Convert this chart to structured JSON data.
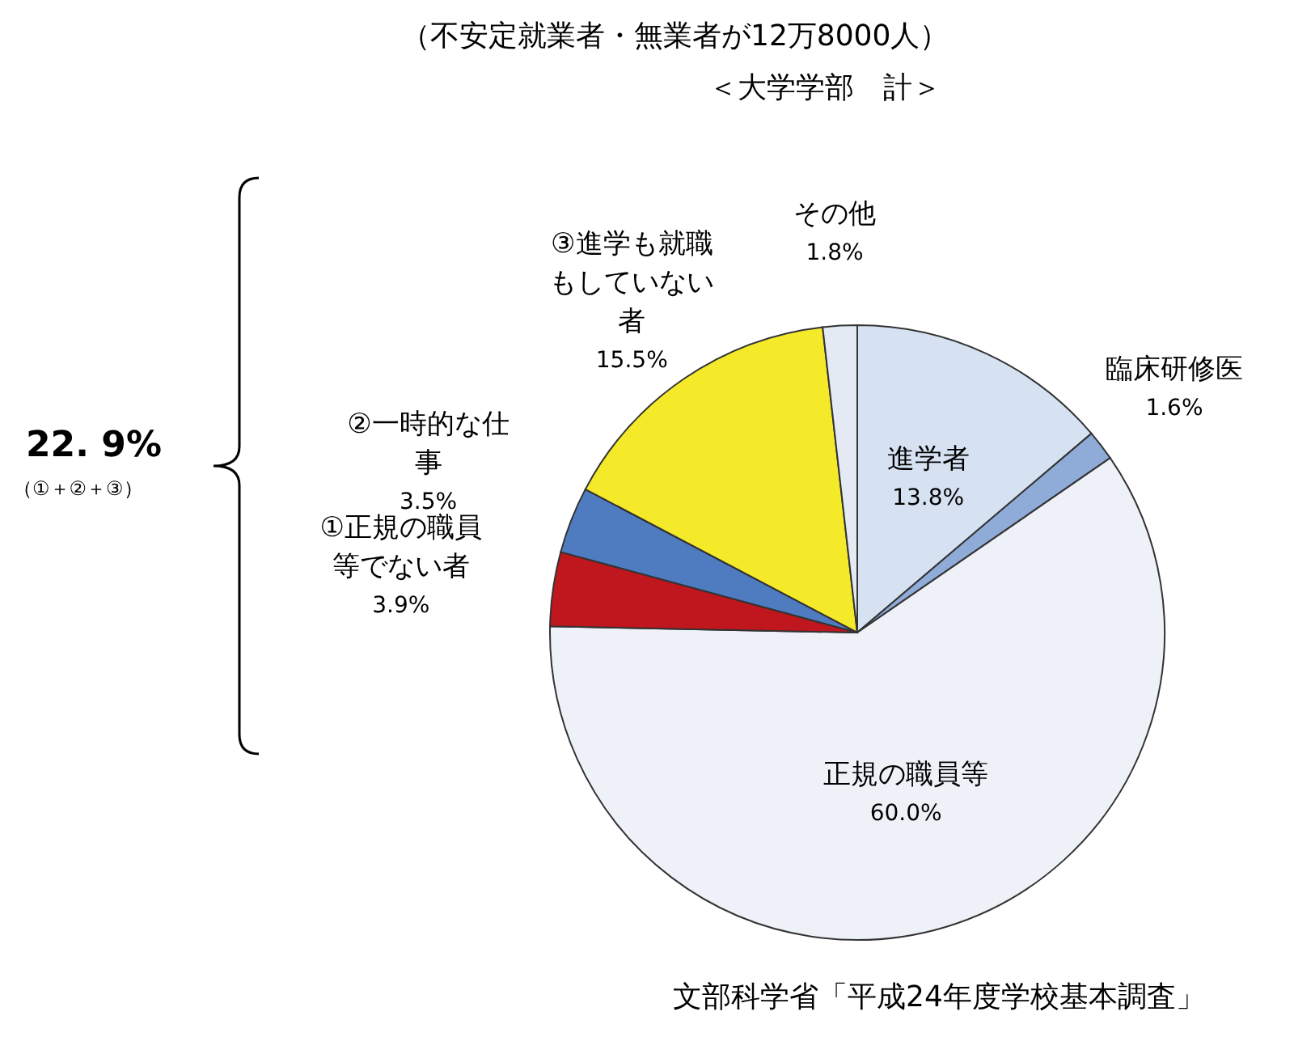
{
  "chart_data": {
    "type": "pie",
    "title": "（不安定就業者・無業者が12万8000人）",
    "subtitle": "＜大学学部　計＞",
    "categories": [
      "進学者",
      "臨床研修医",
      "正規の職員等",
      "①正規の職員等でない者",
      "②一時的な仕事",
      "③進学も就職もしていない者",
      "その他"
    ],
    "values": [
      13.8,
      1.6,
      60.0,
      3.9,
      3.5,
      15.5,
      1.8
    ],
    "colors": [
      "#d6e2f2",
      "#8fabd8",
      "#eef2f8",
      "#c0161e",
      "#4f7cc0",
      "#f4ea2a",
      "#e3eaf4"
    ],
    "value_labels": [
      "13.8%",
      "1.6%",
      "60.0%",
      "3.9%",
      "3.5%",
      "15.5%",
      "1.8%"
    ],
    "annotations": [
      "22. 9%",
      "（①＋②＋③）",
      "文部科学省「平成24年度学校基本調査」"
    ]
  }
}
